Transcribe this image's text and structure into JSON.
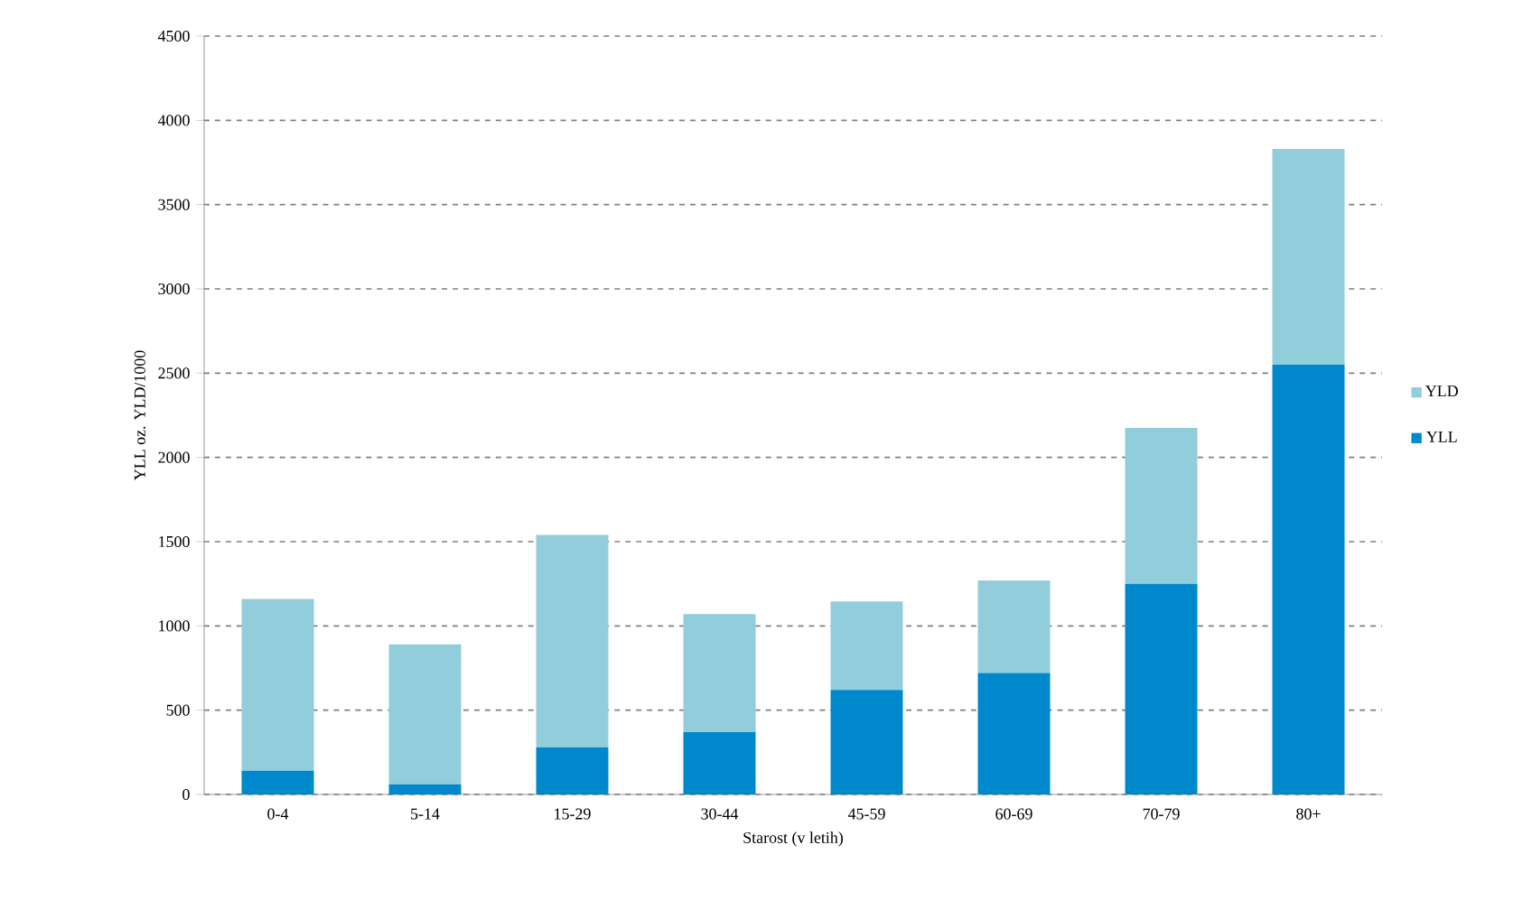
{
  "chart_data": {
    "type": "bar",
    "stacked": true,
    "xlabel": "Starost (v letih)",
    "ylabel": "YLL oz. YLD/1000",
    "categories": [
      "0-4",
      "5-14",
      "15-29",
      "30-44",
      "45-59",
      "60-69",
      "70-79",
      "80+"
    ],
    "series": [
      {
        "name": "YLL",
        "color": "#0088cc",
        "values": [
          140,
          60,
          280,
          370,
          620,
          720,
          1250,
          2550
        ]
      },
      {
        "name": "YLD",
        "color": "#92cddc",
        "values": [
          1020,
          830,
          1260,
          700,
          525,
          550,
          925,
          1280
        ]
      }
    ],
    "ylim": [
      0,
      4500
    ],
    "yticks": [
      0,
      500,
      1000,
      1500,
      2000,
      2500,
      3000,
      3500,
      4000,
      4500
    ],
    "grid": "y",
    "legend": "right"
  }
}
